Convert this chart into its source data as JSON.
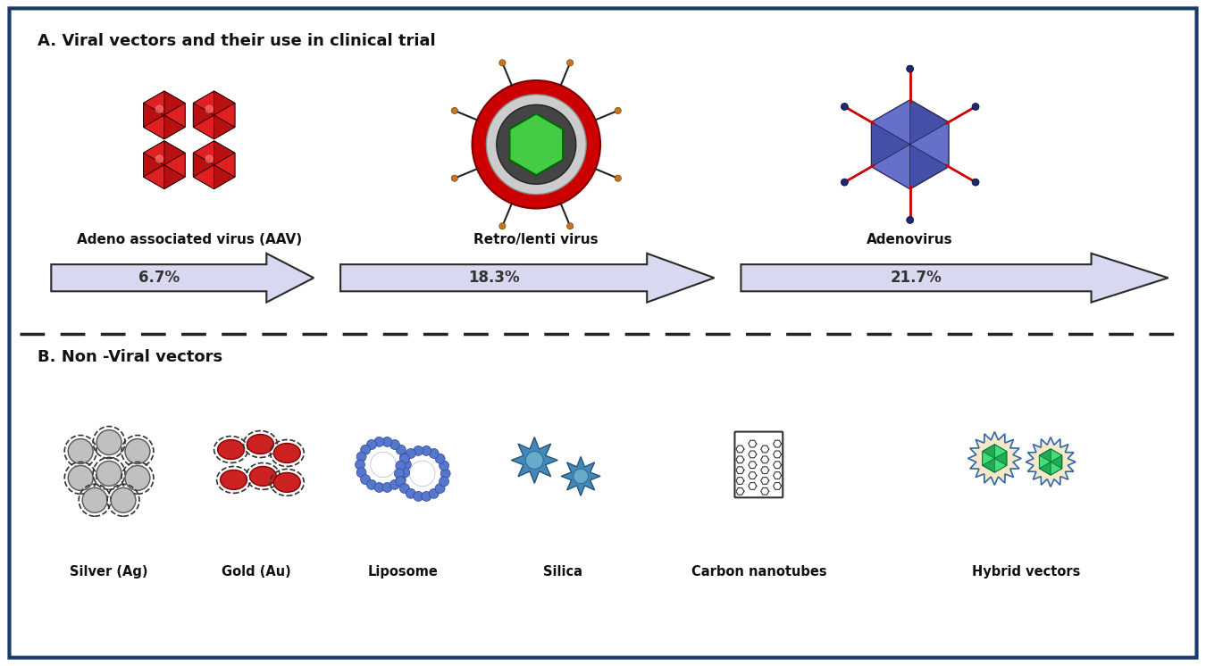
{
  "title_a": "A. Viral vectors and their use in clinical trial",
  "title_b": "B. Non -Viral vectors",
  "viral_labels": [
    "Adeno associated virus (AAV)",
    "Retro/lenti virus",
    "Adenovirus"
  ],
  "viral_percentages": [
    "6.7%",
    "18.3%",
    "21.7%"
  ],
  "non_viral_labels": [
    "Silver (Ag)",
    "Gold (Au)",
    "Liposome",
    "Silica",
    "Carbon nanotubes",
    "Hybrid vectors"
  ],
  "bg_color": "#ffffff",
  "border_color": "#1a3a6b",
  "arrow_fill": "#d8d8f0",
  "arrow_edge": "#2a2a2a",
  "aav_color1": "#e02020",
  "aav_color2": "#c01010",
  "adeno_body_color": "#5560b8",
  "adeno_spike_color": "#cc0000",
  "adeno_tip_color": "#1a2a6b",
  "retro_outer": "#cc0000",
  "retro_inner": "#888888",
  "retro_core": "#33aa33",
  "retro_spike_color": "#222222",
  "retro_tip_color": "#d07020",
  "silver_color": "#bbbbbb",
  "gold_color": "#cc2222",
  "liposome_color": "#5577cc",
  "silica_color": "#4488bb",
  "nanotube_color": "#333333",
  "hybrid_fill": "#f5e8c8",
  "hybrid_gem": "#33cc66",
  "hybrid_spike": "#3366aa",
  "dashed_line_color": "#222222",
  "text_color": "#111111",
  "font_family": "DejaVu Sans"
}
